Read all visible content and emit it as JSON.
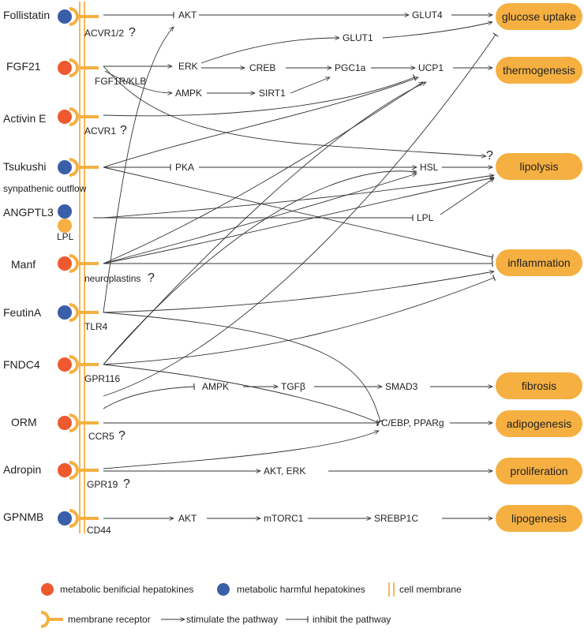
{
  "colors": {
    "beneficial": "#ee5a2f",
    "harmful": "#3a5ea8",
    "receptor": "#f5b041",
    "outcome_fill": "#f5b041",
    "membrane": "#f5b041",
    "question": "#e03a2a"
  },
  "hepatokines": [
    "Follistatin",
    "FGF21",
    "Activin E",
    "Tsukushi",
    "ANGPTL3",
    "Manf",
    "FeutinA",
    "FNDC4",
    "ORM",
    "Adropin",
    "GPNMB"
  ],
  "receptors": [
    "ACVR1/2",
    "FGF1R/KLB",
    "ACVR1",
    "synpathenic outflow",
    "LPL",
    "neuroplastins",
    "TLR4",
    "GPR116",
    "CCR5",
    "GPR19",
    "CD44"
  ],
  "question_mark": "?",
  "nodes": [
    "AKT",
    "GLUT4",
    "GLUT1",
    "ERK",
    "CREB",
    "PGC1a",
    "UCP1",
    "AMPK",
    "SIRT1",
    "PKA",
    "HSL",
    "LPL",
    "AMPK",
    "TGFβ",
    "SMAD3",
    "C/EBP, PPARg",
    "AKT, ERK",
    "AKT",
    "mTORC1",
    "SREBP1C"
  ],
  "outcomes": [
    "glucose uptake",
    "thermogenesis",
    "lipolysis",
    "inflammation",
    "fibrosis",
    "adipogenesis",
    "proliferation",
    "lipogenesis"
  ],
  "legend": {
    "beneficial": "metabolic benificial hepatokines",
    "harmful": "metabolic harmful hepatokines",
    "membrane": "cell membrane",
    "receptor": "membrane receptor",
    "stimulate": "stimulate the pathway",
    "inhibit": "inhibit the pathway"
  }
}
